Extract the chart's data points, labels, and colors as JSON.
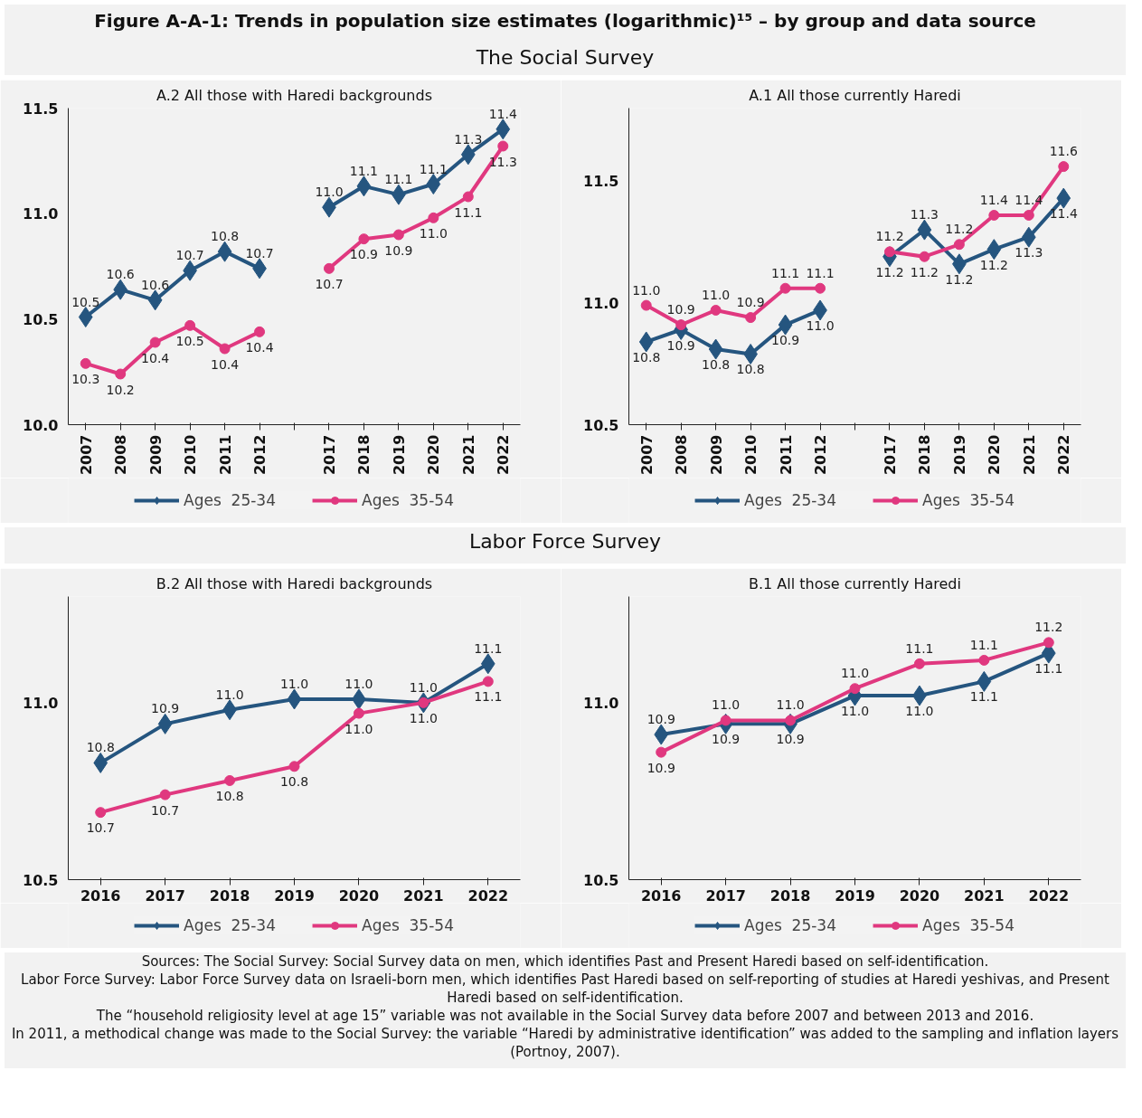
{
  "chart_data": [
    {
      "type": "line",
      "title": "A.2 All those with Haredi backgrounds",
      "annotations": [
        "Figure A-A-1: Trends in population size estimates (logarithmic)¹⁵ – by group and data source",
        "The Social Survey"
      ],
      "categories": [
        "2007",
        "2008",
        "2009",
        "2010",
        "2011",
        "2012",
        null,
        "2017",
        "2018",
        "2019",
        "2020",
        "2021",
        "2022"
      ],
      "ylim": [
        10.0,
        11.5
      ],
      "yticks": [
        {
          "value": 10.0,
          "label": "10.0"
        },
        {
          "value": 10.5,
          "label": "10.5"
        },
        {
          "value": 11.0,
          "label": "11.0"
        },
        {
          "value": 11.5,
          "label": "11.5"
        }
      ],
      "legend": "bottom",
      "line_style": "solid",
      "series": [
        {
          "name": "Ages  25-34",
          "color": "#25557f",
          "marker": "diamond",
          "values": [
            10.51,
            10.64,
            10.59,
            10.73,
            10.82,
            10.74,
            null,
            11.03,
            11.13,
            11.09,
            11.14,
            11.28,
            11.4
          ],
          "value_labels": [
            "10.5",
            "10.6",
            "10.6",
            "10.7",
            "10.8",
            "10.7",
            null,
            "11.0",
            "11.1",
            "11.1",
            "11.1",
            "11.3",
            "11.4"
          ]
        },
        {
          "name": "Ages  35-54",
          "color": "#e0387f",
          "marker": "circle",
          "values": [
            10.29,
            10.24,
            10.39,
            10.47,
            10.36,
            10.44,
            null,
            10.74,
            10.88,
            10.9,
            10.98,
            11.08,
            11.32
          ],
          "value_labels": [
            "10.3",
            "10.2",
            "10.4",
            "10.5",
            "10.4",
            "10.4",
            null,
            "10.7",
            "10.9",
            "10.9",
            "11.0",
            "11.1",
            "11.3"
          ]
        }
      ]
    },
    {
      "type": "line",
      "title": "A.1 All those currently Haredi",
      "categories": [
        "2007",
        "2008",
        "2009",
        "2010",
        "2011",
        "2012",
        null,
        "2017",
        "2018",
        "2019",
        "2020",
        "2021",
        "2022"
      ],
      "ylim": [
        10.5,
        11.8
      ],
      "yticks": [
        {
          "value": 10.5,
          "label": "10.5"
        },
        {
          "value": 11.0,
          "label": "11.0"
        },
        {
          "value": 11.5,
          "label": "11.5"
        }
      ],
      "legend": "bottom",
      "line_style": "solid",
      "series": [
        {
          "name": "Ages  25-34",
          "color": "#25557f",
          "marker": "diamond",
          "values": [
            10.84,
            10.89,
            10.81,
            10.79,
            10.91,
            10.97,
            null,
            11.19,
            11.3,
            11.16,
            11.22,
            11.27,
            11.43
          ],
          "value_labels": [
            "10.8",
            "10.9",
            "10.8",
            "10.8",
            "10.9",
            "11.0",
            null,
            "11.2",
            "11.3",
            "11.2",
            "11.2",
            "11.3",
            "11.4"
          ]
        },
        {
          "name": "Ages  35-54",
          "color": "#e0387f",
          "marker": "circle",
          "values": [
            10.99,
            10.91,
            10.97,
            10.94,
            11.06,
            11.06,
            null,
            11.21,
            11.19,
            11.24,
            11.36,
            11.36,
            11.56
          ],
          "value_labels": [
            "11.0",
            "10.9",
            "11.0",
            "10.9",
            "11.1",
            "11.1",
            null,
            "11.2",
            "11.2",
            "11.2",
            "11.4",
            "11.4",
            "11.6"
          ]
        }
      ]
    },
    {
      "type": "line",
      "title": "B.2 All those with Haredi backgrounds",
      "annotations": [
        "Labor Force Survey"
      ],
      "categories": [
        "2016",
        "2017",
        "2018",
        "2019",
        "2020",
        "2021",
        "2022"
      ],
      "ylim": [
        10.5,
        11.3
      ],
      "yticks": [
        {
          "value": 10.5,
          "label": "10.5"
        },
        {
          "value": 11.0,
          "label": "11.0"
        }
      ],
      "legend": "bottom",
      "line_style": "solid",
      "series": [
        {
          "name": "Ages  25-34",
          "color": "#25557f",
          "marker": "diamond",
          "values": [
            10.83,
            10.94,
            10.98,
            11.01,
            11.01,
            11.0,
            11.11
          ],
          "value_labels": [
            "10.8",
            "10.9",
            "11.0",
            "11.0",
            "11.0",
            "11.0",
            "11.1"
          ]
        },
        {
          "name": "Ages  35-54",
          "color": "#e0387f",
          "marker": "circle",
          "values": [
            10.69,
            10.74,
            10.78,
            10.82,
            10.97,
            11.0,
            11.06
          ],
          "value_labels": [
            "10.7",
            "10.7",
            "10.8",
            "10.8",
            "11.0",
            "11.0",
            "11.1"
          ]
        }
      ]
    },
    {
      "type": "line",
      "title": "B.1 All those currently Haredi",
      "annotations": [
        "Sources: The Social Survey: Social Survey data on men, which identifies Past and Present Haredi based on self-identification.",
        "Labor Force Survey: Labor Force Survey data on Israeli-born men, which identifies Past Haredi based on self-reporting of studies at Haredi yeshivas, and Present Haredi based on self-identification.",
        "The “household religiosity level at age 15” variable was not available in the Social Survey data before 2007 and between 2013 and 2016.",
        "In 2011, a methodical change was made to the Social Survey: the variable “Haredi by administrative identification” was added to the sampling and inflation layers (Portnoy, 2007)."
      ],
      "categories": [
        "2016",
        "2017",
        "2018",
        "2019",
        "2020",
        "2021",
        "2022"
      ],
      "ylim": [
        10.5,
        11.3
      ],
      "yticks": [
        {
          "value": 10.5,
          "label": "10.5"
        },
        {
          "value": 11.0,
          "label": "11.0"
        }
      ],
      "legend": "bottom",
      "line_style": "solid",
      "series": [
        {
          "name": "Ages  25-34",
          "color": "#25557f",
          "marker": "diamond",
          "values": [
            10.91,
            10.94,
            10.94,
            11.02,
            11.02,
            11.06,
            11.14
          ],
          "value_labels": [
            "10.9",
            "10.9",
            "10.9",
            "11.0",
            "11.0",
            "11.1",
            "11.1"
          ]
        },
        {
          "name": "Ages  35-54",
          "color": "#e0387f",
          "marker": "circle",
          "values": [
            10.86,
            10.95,
            10.95,
            11.04,
            11.11,
            11.12,
            11.17
          ],
          "value_labels": [
            "10.9",
            "11.0",
            "11.0",
            "11.0",
            "11.1",
            "11.1",
            "11.2"
          ]
        }
      ]
    }
  ]
}
